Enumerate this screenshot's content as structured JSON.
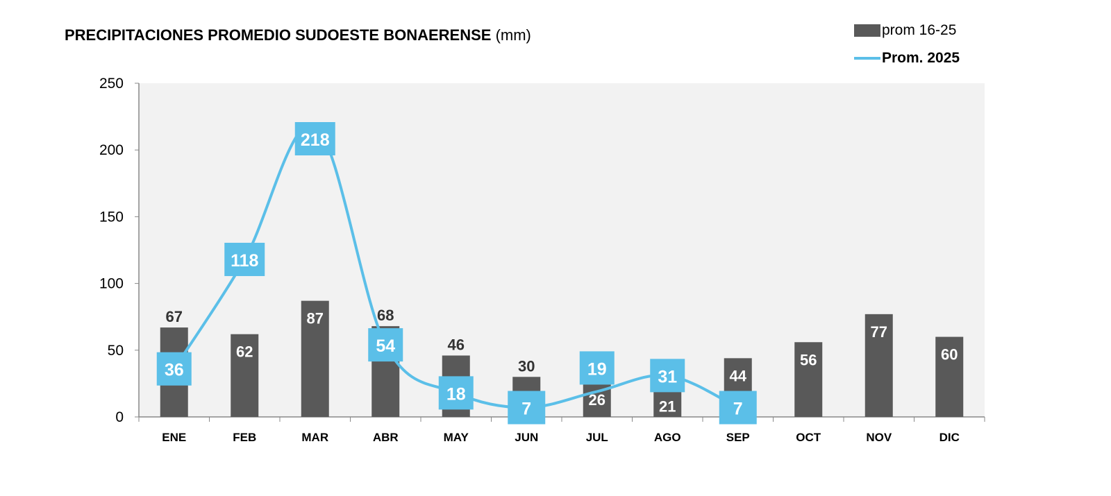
{
  "chart_data": {
    "type": "bar+line",
    "title": "PRECIPITACIONES PROMEDIO SUDOESTE BONAERENSE",
    "title_unit": "(mm)",
    "categories": [
      "ENE",
      "FEB",
      "MAR",
      "ABR",
      "MAY",
      "JUN",
      "JUL",
      "AGO",
      "SEP",
      "OCT",
      "NOV",
      "DIC"
    ],
    "series": [
      {
        "name": "prom 16-25",
        "type": "bar",
        "color": "#595959",
        "values": [
          67,
          62,
          87,
          68,
          46,
          30,
          26,
          21,
          44,
          56,
          77,
          60
        ]
      },
      {
        "name": "Prom. 2025",
        "type": "line",
        "color": "#5bbfe8",
        "values": [
          36,
          118,
          218,
          54,
          18,
          7,
          19,
          31,
          7,
          null,
          null,
          null
        ]
      }
    ],
    "ylim": [
      0,
      250
    ],
    "yticks": [
      0,
      50,
      100,
      150,
      200,
      250
    ],
    "legend": "top-right",
    "plot_bg": "#f2f2f2"
  }
}
